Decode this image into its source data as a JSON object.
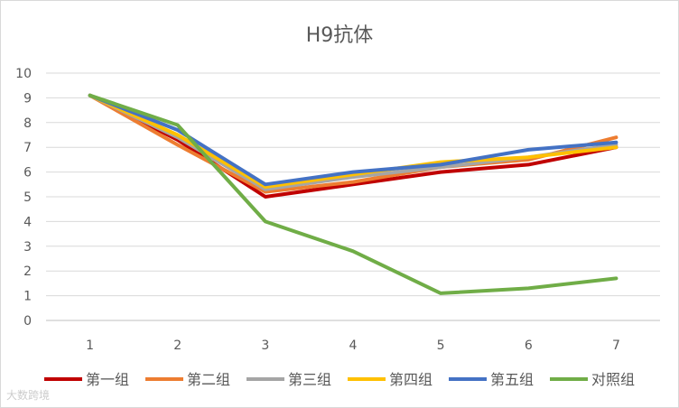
{
  "chart_data": {
    "type": "line",
    "title": "H9抗体",
    "x": [
      "1",
      "2",
      "3",
      "4",
      "5",
      "6",
      "7"
    ],
    "ylim": [
      0,
      10
    ],
    "yticks": [
      0,
      1,
      2,
      3,
      4,
      5,
      6,
      7,
      8,
      9,
      10
    ],
    "grid": true,
    "legend_position": "bottom",
    "series": [
      {
        "name": "第一组",
        "color": "#c00000",
        "values": [
          9.1,
          7.3,
          5.0,
          5.5,
          6.0,
          6.3,
          7.0
        ]
      },
      {
        "name": "第二组",
        "color": "#ed7d31",
        "values": [
          9.1,
          7.1,
          5.2,
          5.6,
          6.2,
          6.5,
          7.4
        ]
      },
      {
        "name": "第三组",
        "color": "#a5a5a5",
        "values": [
          9.1,
          7.4,
          5.3,
          5.8,
          6.2,
          6.6,
          7.1
        ]
      },
      {
        "name": "第四组",
        "color": "#ffc000",
        "values": [
          9.1,
          7.5,
          5.4,
          5.9,
          6.4,
          6.6,
          7.0
        ]
      },
      {
        "name": "第五组",
        "color": "#4472c4",
        "values": [
          9.1,
          7.7,
          5.5,
          6.0,
          6.3,
          6.9,
          7.2
        ]
      },
      {
        "name": "对照组",
        "color": "#70ad47",
        "values": [
          9.1,
          7.9,
          4.0,
          2.8,
          1.1,
          1.3,
          1.7
        ]
      }
    ]
  },
  "watermark": {
    "text": "大数跨境"
  }
}
